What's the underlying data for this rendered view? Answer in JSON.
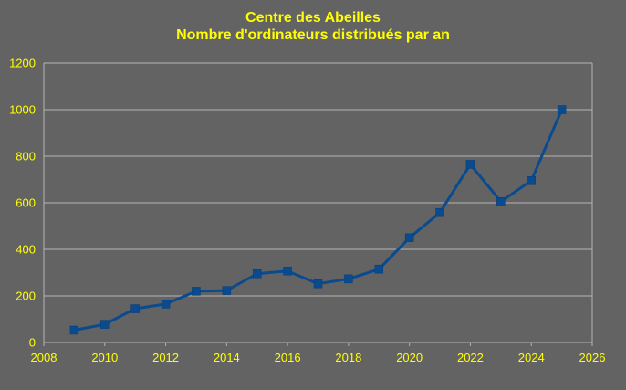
{
  "colors": {
    "background": "#636363",
    "text": "#ffff00",
    "grid": "#b4b4b4",
    "series": "#0a4a8f"
  },
  "chart_data": {
    "type": "line",
    "title": "Centre des Abeilles",
    "subtitle": "Nombre d'ordinateurs distribués par an",
    "xlabel": "",
    "ylabel": "",
    "xlim": [
      2008,
      2026
    ],
    "ylim": [
      0,
      1200
    ],
    "xticks": [
      2008,
      2010,
      2012,
      2014,
      2016,
      2018,
      2020,
      2022,
      2024,
      2026
    ],
    "yticks": [
      0,
      200,
      400,
      600,
      800,
      1000,
      1200
    ],
    "grid": "horizontal",
    "legend": "none",
    "marker": "square",
    "series": [
      {
        "x": [
          2009,
          2010,
          2011,
          2012,
          2013,
          2014,
          2015,
          2016,
          2017,
          2018,
          2019,
          2020,
          2021,
          2022,
          2023,
          2024,
          2025
        ],
        "y": [
          53,
          78,
          145,
          165,
          220,
          223,
          295,
          307,
          252,
          273,
          315,
          450,
          558,
          765,
          605,
          695,
          1000
        ]
      }
    ]
  }
}
